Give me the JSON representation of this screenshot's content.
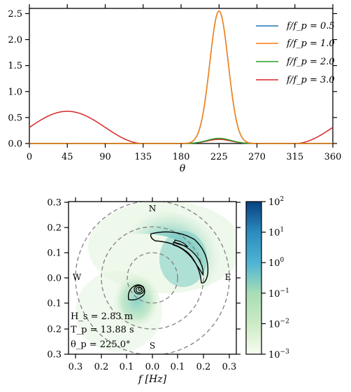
{
  "chart_data": [
    {
      "type": "line",
      "xlabel": "θ",
      "xlim": [
        0,
        360
      ],
      "ylim": [
        0,
        2.6
      ],
      "xticks": [
        0,
        45,
        90,
        135,
        180,
        225,
        270,
        315,
        360
      ],
      "yticks": [
        "0.0",
        "0.5",
        "1.0",
        "1.5",
        "2.0",
        "2.5"
      ],
      "legend_position": "top-right",
      "series": [
        {
          "name": "f/f_p = 0.5",
          "color": "#1f77b4",
          "peak_theta": 225,
          "peak_value": 2.55,
          "shape": "narrow"
        },
        {
          "name": "f/f_p = 1.0",
          "color": "#ff7f0e",
          "peak_theta": 225,
          "peak_value": 2.55,
          "shape": "narrow"
        },
        {
          "name": "f/f_p = 2.0",
          "color": "#2ca02c",
          "peak_theta": 225,
          "peak_value": 0.1,
          "shape": "medium"
        },
        {
          "name": "f/f_p = 3.0",
          "color": "#d62728",
          "peak_theta": 45,
          "peak_value": 0.62,
          "shape": "broad",
          "values_sampled": [
            [
              0,
              0.31
            ],
            [
              45,
              0.62
            ],
            [
              90,
              0.31
            ],
            [
              135,
              0.0
            ],
            [
              225,
              0.08
            ],
            [
              315,
              0.0
            ],
            [
              360,
              0.31
            ]
          ]
        }
      ]
    },
    {
      "type": "heatmap",
      "xlabel": "f [Hz]",
      "xlim": [
        -0.33,
        0.33
      ],
      "ylim": [
        -0.3,
        0.3
      ],
      "xticks": [
        "0.3",
        "0.2",
        "0.1",
        "0.0",
        "0.1",
        "0.2",
        "0.3"
      ],
      "yticks": [
        "0.3",
        "0.2",
        "0.1",
        "0.0",
        "0.1",
        "0.2",
        "0.3"
      ],
      "compass": {
        "N": "N",
        "E": "E",
        "S": "S",
        "W": "W"
      },
      "dashed_circles": [
        0.1,
        0.2,
        0.3
      ],
      "colorbar": {
        "scale": "log",
        "range": [
          0.001,
          100
        ],
        "tick_labels": [
          "10^2",
          "10^1",
          "10^0",
          "10^-1",
          "10^-2",
          "10^-3"
        ]
      },
      "parameters": {
        "Hs": "H_s = 2.83 m",
        "Tp": "T_p = 13.88 s",
        "thetap": "θ_p = 225.0°"
      }
    }
  ]
}
